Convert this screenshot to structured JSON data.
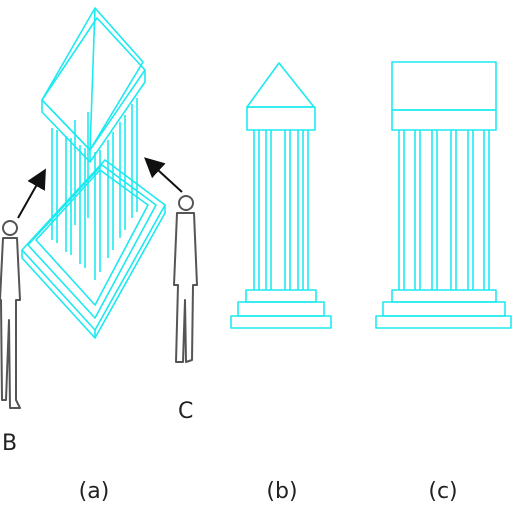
{
  "labels": {
    "person_b": "B",
    "person_c": "C"
  },
  "captions": [
    "(a)",
    "(b)",
    "(c)"
  ]
}
